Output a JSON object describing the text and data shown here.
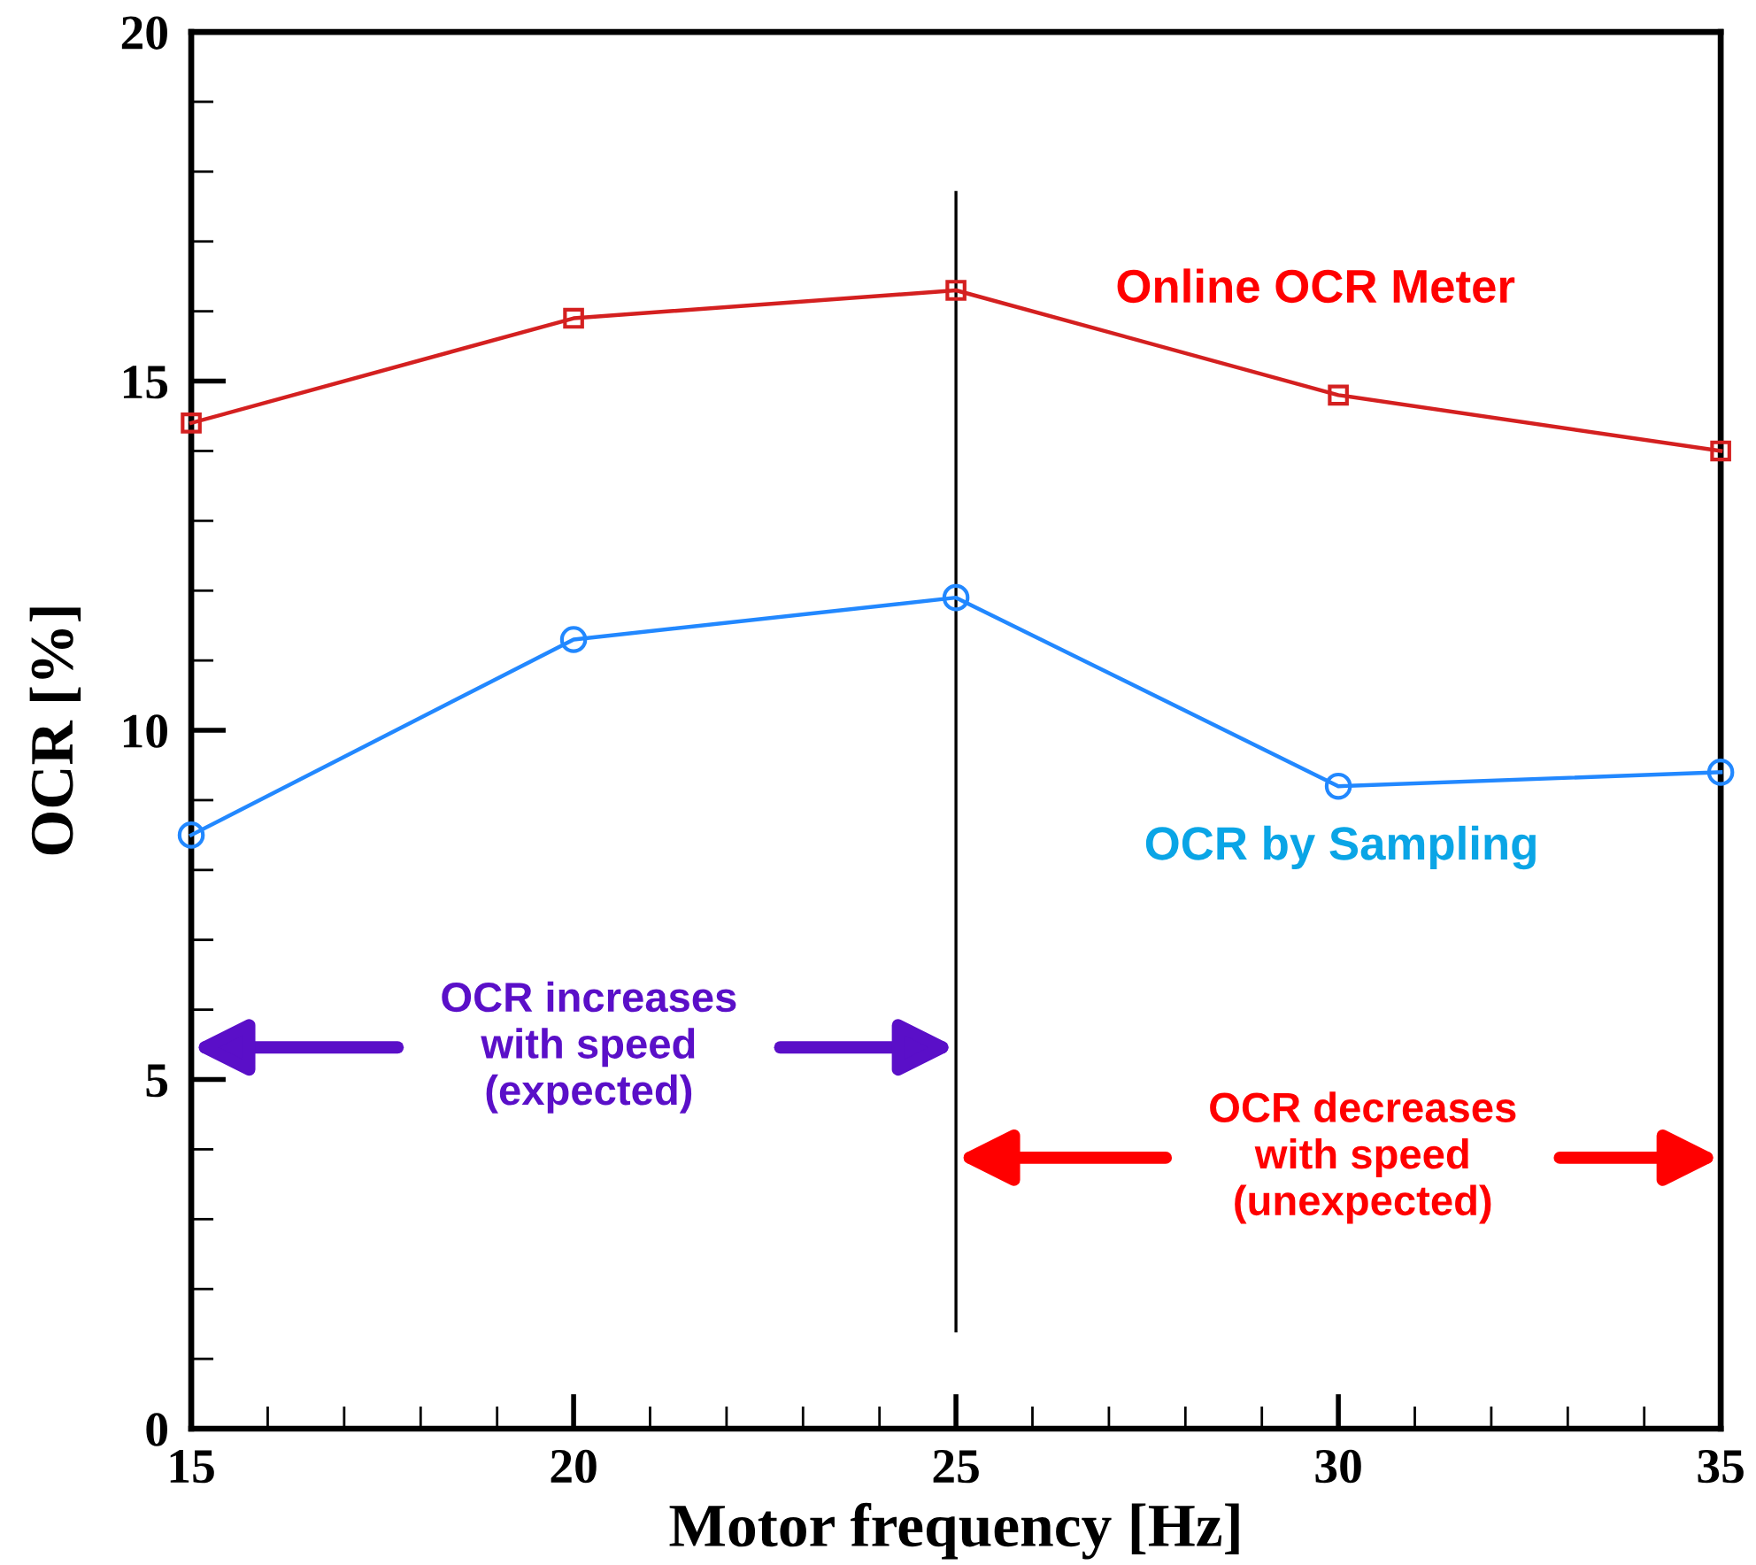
{
  "chart_data": {
    "type": "line",
    "xlabel": "Motor frequency [Hz]",
    "ylabel": "OCR [%]",
    "x": [
      15,
      20,
      25,
      30,
      35
    ],
    "series": [
      {
        "name": "Online OCR Meter",
        "color": "#d42020",
        "marker": "square",
        "values": [
          14.4,
          15.9,
          16.3,
          14.8,
          14.0
        ]
      },
      {
        "name": "OCR by Sampling",
        "color": "#2288ff",
        "marker": "circle",
        "values": [
          8.5,
          11.3,
          11.9,
          9.2,
          9.4
        ]
      }
    ],
    "xlim": [
      15,
      35
    ],
    "xticks": [
      15,
      {
        "value": 16,
        "label": null
      },
      {
        "value": 17,
        "label": null
      },
      {
        "value": 18,
        "label": null
      },
      {
        "value": 19,
        "label": null
      },
      20,
      {
        "value": 21,
        "label": null
      },
      {
        "value": 22,
        "label": null
      },
      {
        "value": 23,
        "label": null
      },
      {
        "value": 24,
        "label": null
      },
      25,
      {
        "value": 26,
        "label": null
      },
      {
        "value": 27,
        "label": null
      },
      {
        "value": 28,
        "label": null
      },
      {
        "value": 29,
        "label": null
      },
      30,
      {
        "value": 31,
        "label": null
      },
      {
        "value": 32,
        "label": null
      },
      {
        "value": 33,
        "label": null
      },
      {
        "value": 34,
        "label": null
      },
      35
    ],
    "ylim": [
      0,
      20
    ],
    "yticks": [
      0,
      {
        "value": 1,
        "label": null
      },
      {
        "value": 2,
        "label": null
      },
      {
        "value": 3,
        "label": null
      },
      {
        "value": 4,
        "label": null
      },
      5,
      {
        "value": 6,
        "label": null
      },
      {
        "value": 7,
        "label": null
      },
      {
        "value": 8,
        "label": null
      },
      {
        "value": 9,
        "label": null
      },
      10,
      {
        "value": 11,
        "label": null
      },
      {
        "value": 12,
        "label": null
      },
      {
        "value": 13,
        "label": null
      },
      {
        "value": 14,
        "label": null
      },
      15,
      {
        "value": 16,
        "label": null
      },
      {
        "value": 17,
        "label": null
      },
      {
        "value": 18,
        "label": null
      },
      {
        "value": 19,
        "label": null
      },
      20
    ],
    "ref_lines": [
      {
        "axis": "x",
        "value": 25,
        "color": "#000000",
        "line_style": "solid"
      }
    ],
    "annotations": [
      "OCR increases\nwith speed\n(expected)",
      "OCR decreases\nwith speed\n(unexpected)"
    ],
    "line_style": "solid"
  }
}
